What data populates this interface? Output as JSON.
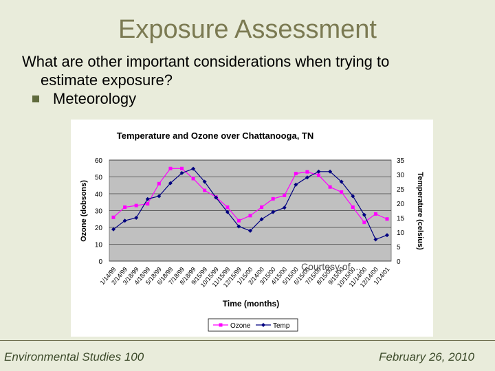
{
  "slide": {
    "title": "Exposure Assessment",
    "bullet_line1": "What are other important considerations when trying to",
    "bullet_line2": "estimate exposure?",
    "sub_bullet": "Meteorology",
    "courtesy_text": "Courtesy of ...",
    "footer_left": "Environmental Studies 100",
    "footer_right": "February 26, 2010"
  },
  "colors": {
    "background": "#e9ecdb",
    "title": "#7b7a52",
    "plot_area": "#c0c0c0",
    "ozone": "#ff00ff",
    "temp": "#000080"
  },
  "chart_data": {
    "type": "line",
    "title": "Temperature and Ozone over Chattanooga, TN",
    "xlabel": "Time (months)",
    "ylabel_left": "Ozone (dobsons)",
    "ylabel_right": "Temperature (celsius)",
    "ylim_left": [
      0,
      60
    ],
    "ylim_right": [
      0,
      35
    ],
    "yticks_left": [
      "0",
      "10",
      "20",
      "30",
      "40",
      "50",
      "60"
    ],
    "yticks_right": [
      "0",
      "5",
      "10",
      "15",
      "20",
      "25",
      "30",
      "35"
    ],
    "categories": [
      "1/14/99",
      "2/14/99",
      "3/18/99",
      "4/18/99",
      "5/18/99",
      "6/18/99",
      "7/18/99",
      "8/18/99",
      "9/15/99",
      "10/15/99",
      "11/15/99",
      "12/15/99",
      "1/15/00",
      "2/14/00",
      "3/15/00",
      "4/15/00",
      "5/15/00",
      "6/15/00",
      "7/15/00",
      "8/15/00",
      "9/15/00",
      "10/15/00",
      "11/14/00",
      "12/14/00",
      "1/14/01"
    ],
    "series": [
      {
        "name": "Ozone",
        "axis": "left",
        "values": [
          26,
          32,
          33,
          34,
          46,
          55,
          55,
          49,
          42,
          38,
          32,
          24,
          27,
          32,
          37,
          39,
          52,
          53,
          51,
          44,
          41,
          32,
          23,
          28,
          25
        ]
      },
      {
        "name": "Temp",
        "axis": "right",
        "values": [
          11,
          14,
          15,
          21.5,
          22.5,
          27,
          30.5,
          32,
          27.5,
          22,
          17,
          12,
          10.5,
          14.5,
          17,
          18.5,
          26.5,
          29,
          31,
          31,
          27.5,
          22.5,
          16,
          7.5,
          9
        ]
      }
    ],
    "legend_position": "bottom"
  }
}
